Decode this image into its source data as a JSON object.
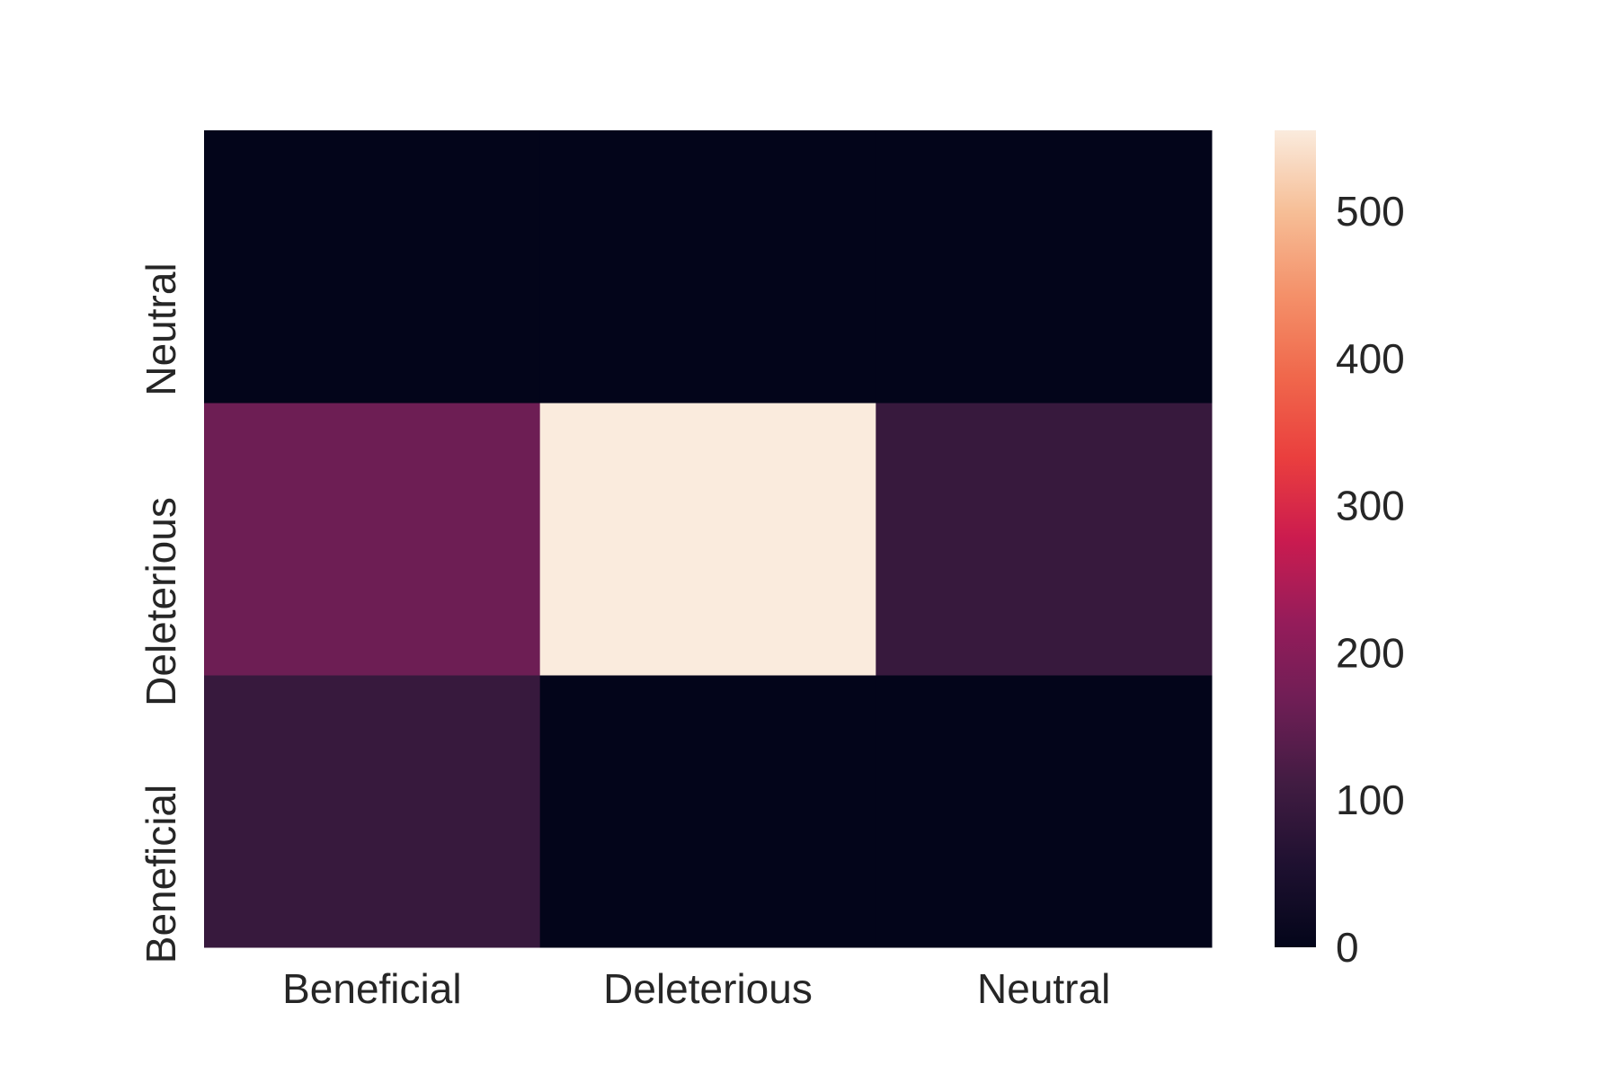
{
  "chart_data": {
    "type": "heatmap",
    "title": "",
    "xlabel": "",
    "ylabel": "",
    "x_categories": [
      "Beneficial",
      "Deleterious",
      "Neutral"
    ],
    "y_categories": [
      "Beneficial",
      "Deleterious",
      "Neutral"
    ],
    "y_order": "bottom-to-top",
    "values": [
      [
        95,
        0,
        0
      ],
      [
        165,
        555,
        95
      ],
      [
        0,
        0,
        0
      ]
    ],
    "colorbar": {
      "colormap": "rocket",
      "vmin": 0,
      "vmax": 555,
      "ticks": [
        0,
        100,
        200,
        300,
        400,
        500
      ]
    },
    "grid": false,
    "legend": "colorbar-right"
  }
}
